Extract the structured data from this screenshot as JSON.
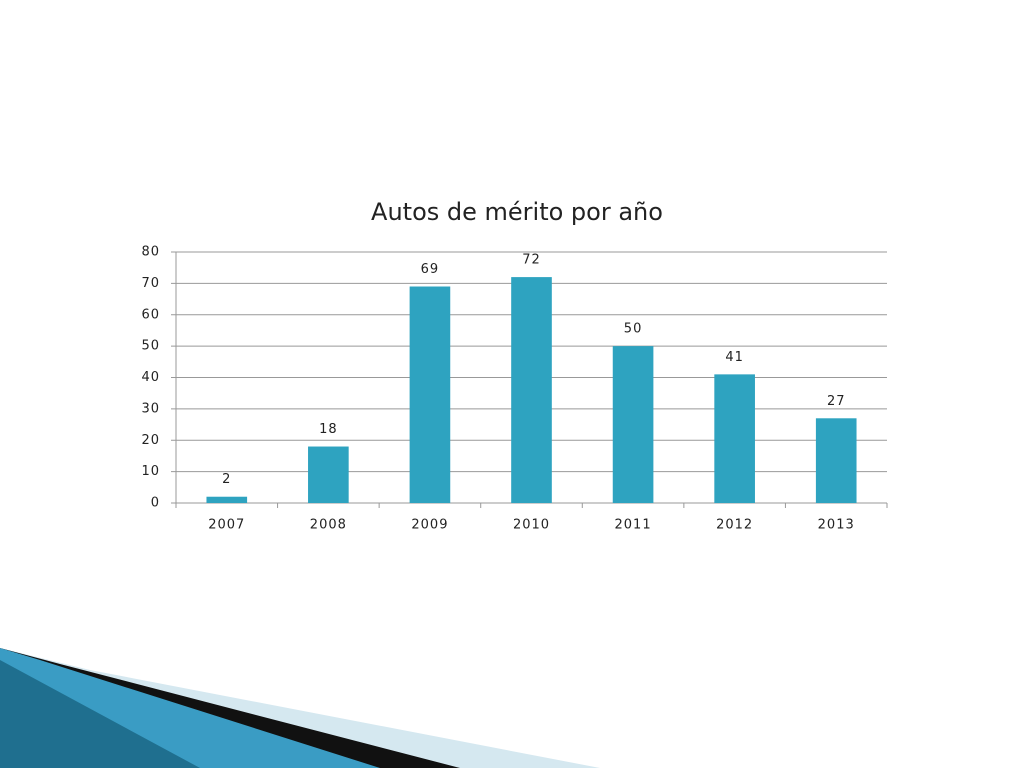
{
  "chart_data": {
    "type": "bar",
    "title": "Autos de mérito por año",
    "categories": [
      "2007",
      "2008",
      "2009",
      "2010",
      "2011",
      "2012",
      "2013"
    ],
    "values": [
      2,
      18,
      69,
      72,
      50,
      41,
      27
    ],
    "color": "#2ea3c0",
    "ylim": [
      0,
      80
    ],
    "yticks": [
      0,
      10,
      20,
      30,
      40,
      50,
      60,
      70,
      80
    ],
    "grid": true
  }
}
